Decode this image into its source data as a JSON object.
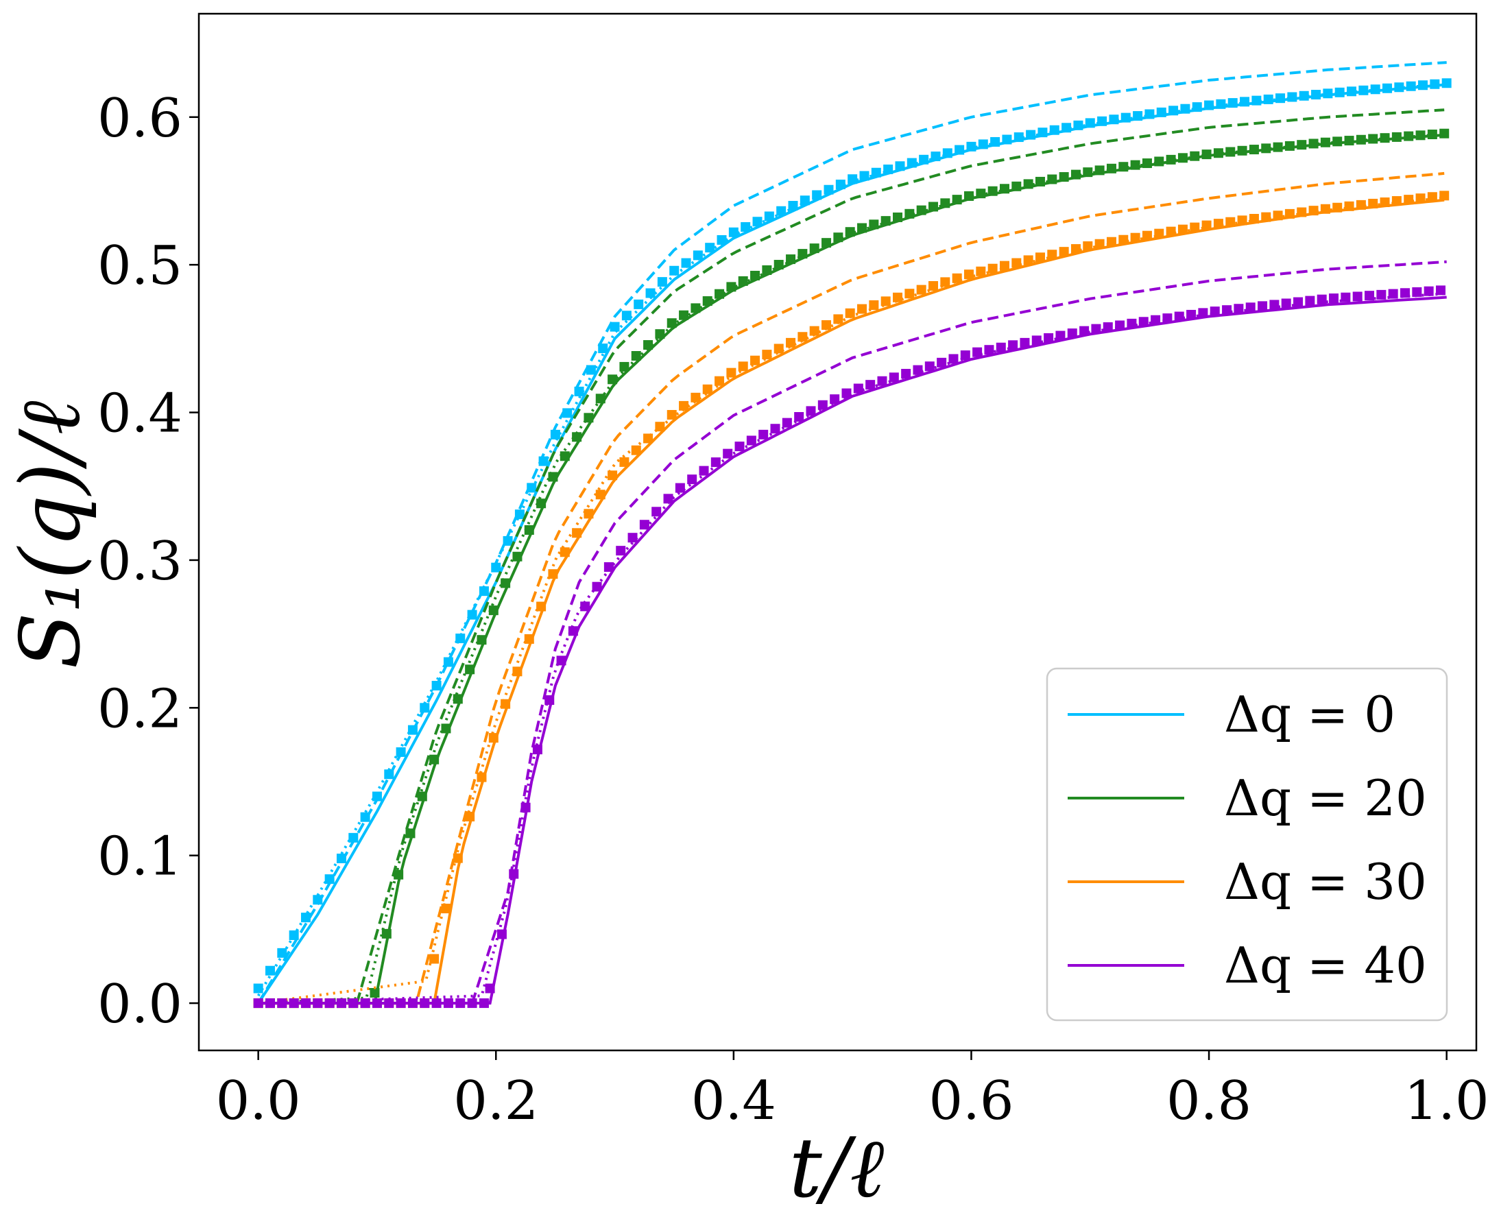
{
  "chart_data": {
    "type": "line",
    "xlabel": "t/ℓ",
    "ylabel": "S₁(q)/ℓ",
    "xlim": [
      -0.05,
      1.025
    ],
    "ylim": [
      -0.032,
      0.67
    ],
    "x_ticks": [
      "0.0",
      "0.2",
      "0.4",
      "0.6",
      "0.8",
      "1.0"
    ],
    "y_ticks": [
      "0.0",
      "0.1",
      "0.2",
      "0.3",
      "0.4",
      "0.5",
      "0.6"
    ],
    "legend_position": "bottom-right",
    "series": [
      {
        "name": "Δq = 0",
        "color": "#00bfff",
        "onset": 0.0,
        "x": [
          0.0,
          0.05,
          0.1,
          0.15,
          0.2,
          0.25,
          0.3,
          0.35,
          0.4,
          0.5,
          0.6,
          0.7,
          0.8,
          0.9,
          1.0
        ],
        "solid": [
          0.0,
          0.06,
          0.13,
          0.205,
          0.285,
          0.375,
          0.45,
          0.49,
          0.518,
          0.555,
          0.578,
          0.594,
          0.606,
          0.615,
          0.622
        ],
        "dashed": [
          0.0,
          0.067,
          0.138,
          0.215,
          0.298,
          0.39,
          0.465,
          0.51,
          0.54,
          0.578,
          0.6,
          0.615,
          0.625,
          0.632,
          0.637
        ],
        "markers": [
          0.01,
          0.07,
          0.14,
          0.215,
          0.295,
          0.385,
          0.458,
          0.496,
          0.522,
          0.558,
          0.58,
          0.596,
          0.608,
          0.616,
          0.623
        ]
      },
      {
        "name": "Δq = 20",
        "color": "#228b22",
        "onset": 0.098,
        "x": [
          0.098,
          0.12,
          0.15,
          0.2,
          0.25,
          0.3,
          0.35,
          0.4,
          0.5,
          0.6,
          0.7,
          0.8,
          0.9,
          1.0
        ],
        "solid": [
          0.0,
          0.09,
          0.165,
          0.265,
          0.355,
          0.42,
          0.458,
          0.483,
          0.52,
          0.545,
          0.561,
          0.574,
          0.582,
          0.588
        ],
        "dashed": [
          0.0,
          0.105,
          0.185,
          0.285,
          0.375,
          0.442,
          0.482,
          0.508,
          0.545,
          0.567,
          0.582,
          0.593,
          0.6,
          0.605
        ],
        "markers": [
          0.007,
          0.095,
          0.17,
          0.27,
          0.36,
          0.425,
          0.462,
          0.486,
          0.523,
          0.547,
          0.563,
          0.575,
          0.583,
          0.589
        ]
      },
      {
        "name": "Δq = 30",
        "color": "#ff8c00",
        "onset": 0.148,
        "x": [
          0.148,
          0.17,
          0.2,
          0.25,
          0.3,
          0.35,
          0.4,
          0.5,
          0.6,
          0.7,
          0.8,
          0.9,
          1.0
        ],
        "solid": [
          0.0,
          0.1,
          0.18,
          0.29,
          0.355,
          0.395,
          0.423,
          0.463,
          0.49,
          0.51,
          0.524,
          0.536,
          0.544
        ],
        "dashed": [
          0.0,
          0.115,
          0.205,
          0.315,
          0.382,
          0.423,
          0.452,
          0.49,
          0.515,
          0.533,
          0.545,
          0.555,
          0.562
        ],
        "markers": [
          0.03,
          0.105,
          0.185,
          0.295,
          0.36,
          0.4,
          0.428,
          0.468,
          0.494,
          0.513,
          0.527,
          0.538,
          0.547
        ]
      },
      {
        "name": "Δq = 40",
        "color": "#9400d3",
        "onset": 0.195,
        "x": [
          0.195,
          0.21,
          0.23,
          0.25,
          0.27,
          0.3,
          0.35,
          0.4,
          0.5,
          0.6,
          0.7,
          0.8,
          0.9,
          1.0
        ],
        "solid": [
          0.0,
          0.06,
          0.15,
          0.215,
          0.255,
          0.295,
          0.34,
          0.37,
          0.411,
          0.436,
          0.453,
          0.465,
          0.473,
          0.478
        ],
        "dashed": [
          0.0,
          0.075,
          0.17,
          0.24,
          0.285,
          0.325,
          0.368,
          0.398,
          0.437,
          0.461,
          0.477,
          0.489,
          0.497,
          0.502
        ],
        "markers": [
          0.01,
          0.065,
          0.155,
          0.222,
          0.262,
          0.302,
          0.346,
          0.375,
          0.415,
          0.44,
          0.456,
          0.468,
          0.477,
          0.483
        ]
      }
    ]
  }
}
